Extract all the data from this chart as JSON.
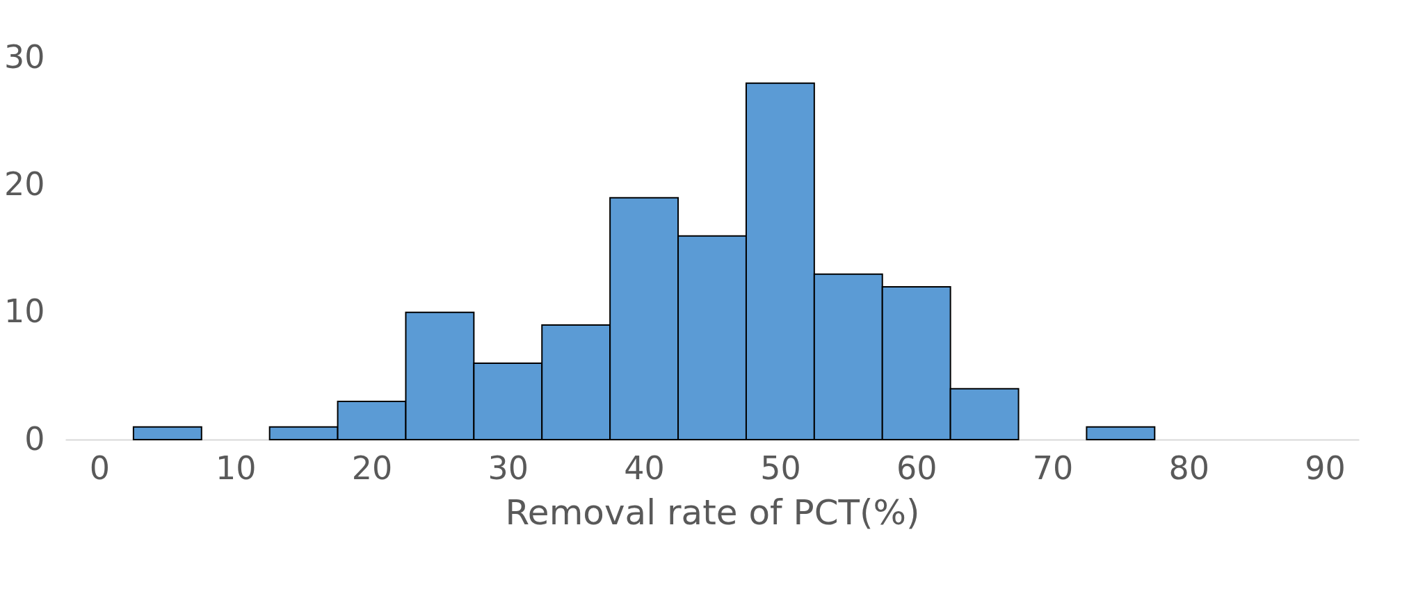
{
  "chart_data": {
    "type": "histogram",
    "xlabel": "Removal rate of PCT(%)",
    "bins": [
      2.5,
      7.5,
      12.5,
      17.5,
      22.5,
      27.5,
      32.5,
      37.5,
      42.5,
      47.5,
      52.5,
      57.5,
      62.5,
      67.5,
      72.5,
      77.5
    ],
    "values": [
      1,
      0,
      1,
      3,
      10,
      6,
      9,
      19,
      16,
      28,
      13,
      12,
      4,
      0,
      1
    ],
    "color": "#5b9bd5",
    "xlim": [
      -2.5,
      92.5
    ],
    "xticks": [
      0,
      10,
      20,
      30,
      40,
      50,
      60,
      70,
      80,
      90
    ],
    "ylim": [
      0,
      30
    ],
    "yticks": [
      0,
      10,
      20,
      30
    ],
    "grid": false
  }
}
